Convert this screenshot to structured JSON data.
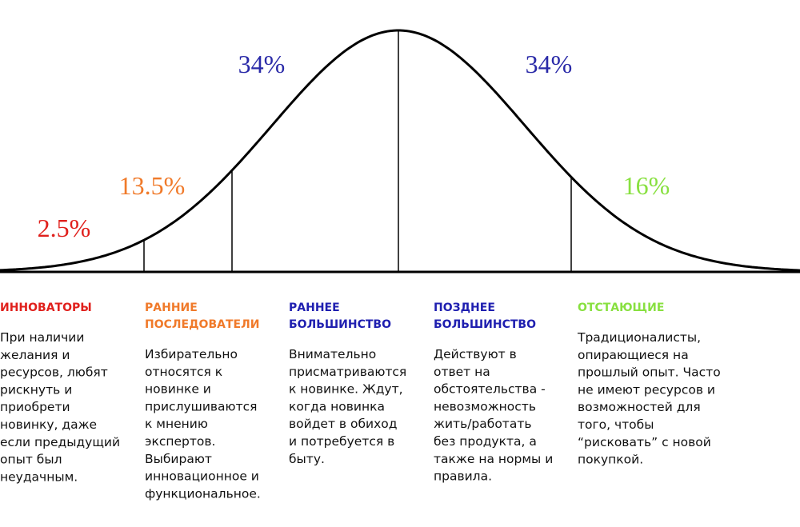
{
  "percents": [
    "2.5%",
    "13.5%",
    "34%",
    "34%",
    "16%"
  ],
  "groups": [
    {
      "title": [
        "ИННОВАТОРЫ"
      ],
      "text": [
        "При наличии",
        "желания и",
        "ресурсов, любят",
        "рискнуть и",
        "приобрети",
        "новинку, даже",
        "если предыдущий",
        "опыт был",
        "неудачным."
      ]
    },
    {
      "title": [
        "РАННИЕ",
        "ПОСЛЕДОВАТЕЛИ"
      ],
      "text": [
        "Избирательно",
        "относятся к",
        "новинке и",
        "прислушиваются",
        "к мнению",
        "экспертов.",
        "Выбирают",
        "инновационное и",
        "функциональное."
      ]
    },
    {
      "title": [
        "РАННЕЕ",
        "БОЛЬШИНСТВО"
      ],
      "text": [
        "Внимательно",
        "присматриваются",
        "к новинке. Ждут,",
        "когда новинка",
        "войдет в обиход",
        "и потребуется в",
        "быту."
      ]
    },
    {
      "title": [
        "ПОЗДНЕЕ",
        "БОЛЬШИНСТВО"
      ],
      "text": [
        "Действуют в",
        "ответ на",
        "обстоятельства -",
        "невозможность",
        "жить/работать",
        "без продукта, а",
        "также на нормы и",
        "правила."
      ]
    },
    {
      "title": [
        "ОТСТАЮЩИЕ"
      ],
      "text": [
        "Традиционалисты,",
        "опирающиеся на",
        "прошлый опыт. Часто",
        "не имеют ресурсов и",
        "возможностей для",
        "того, чтобы",
        "“рисковать” с новой",
        "покупкой."
      ]
    }
  ]
}
